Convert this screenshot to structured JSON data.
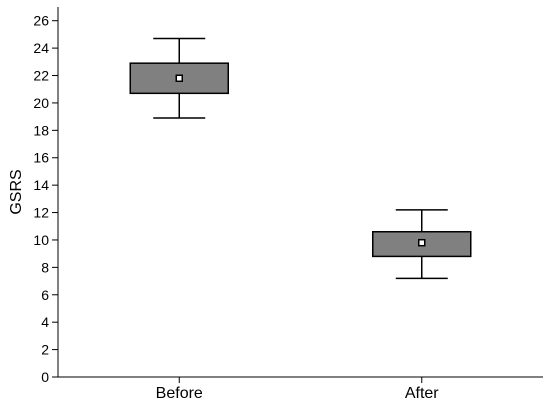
{
  "chart_data": {
    "type": "box",
    "title": "",
    "xlabel": "",
    "ylabel": "GSRS",
    "ylim": [
      0,
      27
    ],
    "yticks": [
      0,
      2,
      4,
      6,
      8,
      10,
      12,
      14,
      16,
      18,
      20,
      22,
      24,
      26
    ],
    "categories": [
      "Before",
      "After"
    ],
    "boxes": [
      {
        "category": "Before",
        "whisker_low": 18.9,
        "q1": 20.7,
        "mean": 21.8,
        "q3": 22.9,
        "whisker_high": 24.7
      },
      {
        "category": "After",
        "whisker_low": 7.2,
        "q1": 8.8,
        "mean": 9.8,
        "q3": 10.6,
        "whisker_high": 12.2
      }
    ],
    "grid": false,
    "colors": {
      "box_fill": "#808080",
      "stroke": "#000000",
      "marker_fill": "#ffffff"
    }
  }
}
